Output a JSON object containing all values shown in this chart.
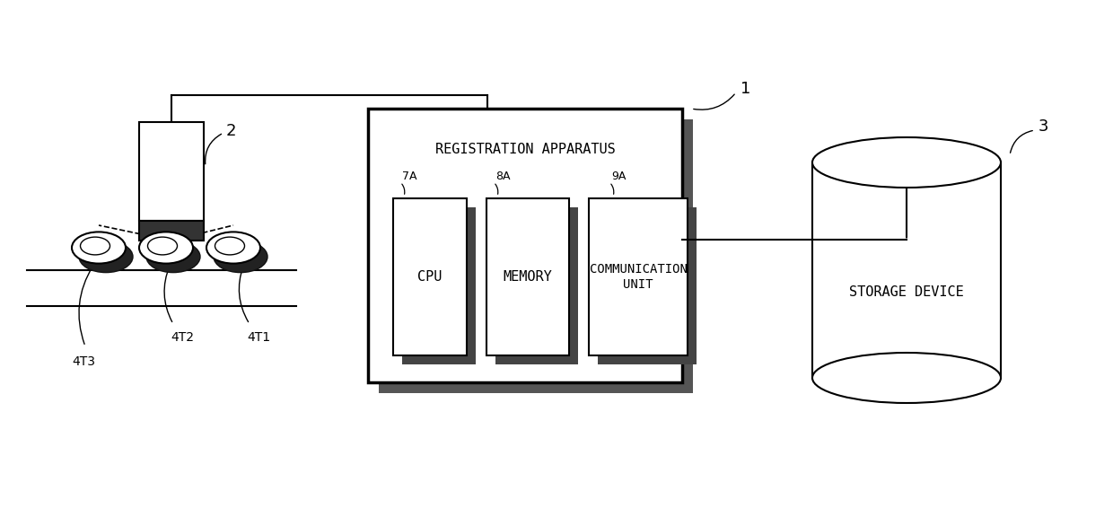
{
  "bg_color": "#ffffff",
  "line_color": "#000000",
  "fig_width": 12.4,
  "fig_height": 5.66,
  "dpi": 100,
  "labels": {
    "registration": "REGISTRATION APPARATUS",
    "cpu": "CPU",
    "memory": "MEMORY",
    "comm": "COMMUNICATION\nUNIT",
    "storage": "STORAGE DEVICE",
    "label1": "1",
    "label2": "2",
    "label3": "3",
    "label7A": "7A",
    "label8A": "8A",
    "label9A": "9A",
    "label4T1": "4T1",
    "label4T2": "4T2",
    "label4T3": "4T3"
  }
}
